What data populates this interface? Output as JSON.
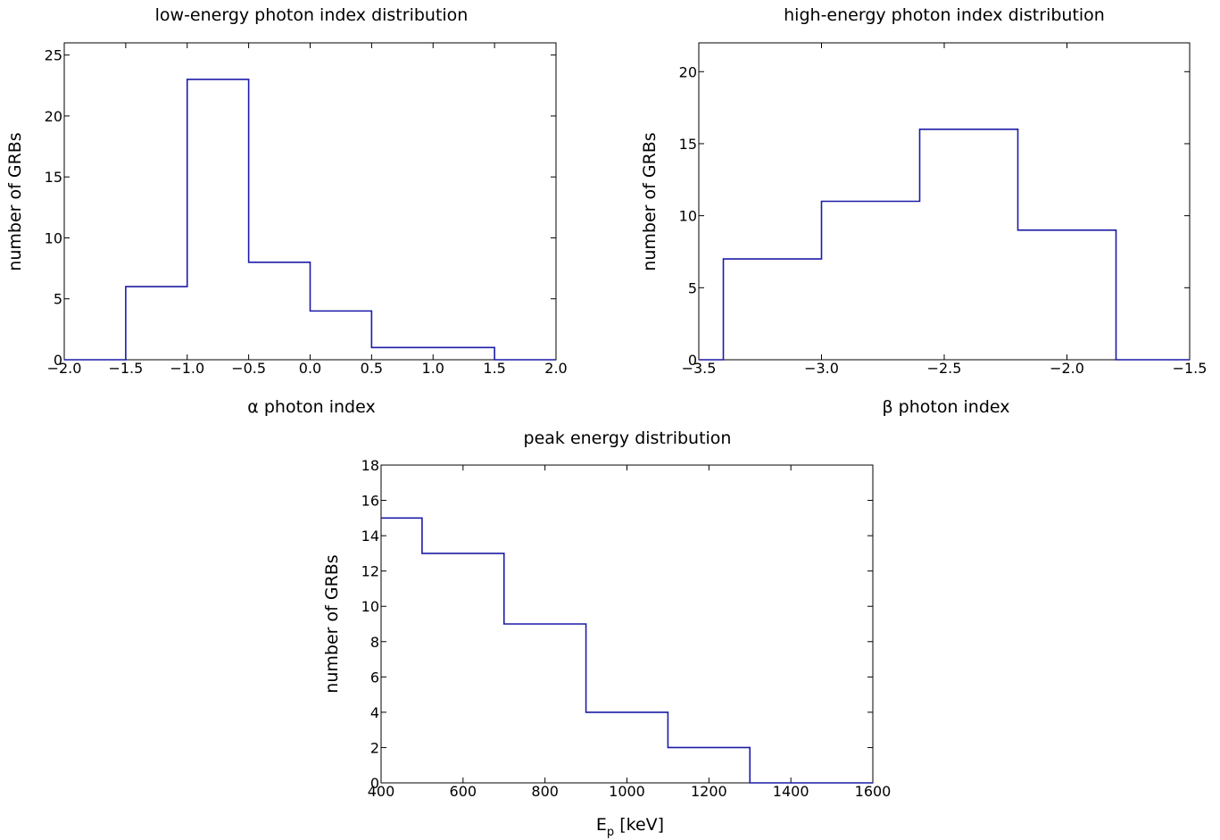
{
  "chart_data": [
    {
      "type": "histogram",
      "title": "low-energy photon index distribution",
      "xlabel": "α photon index",
      "ylabel": "number of GRBs",
      "xlim": [
        -2.0,
        2.0
      ],
      "ylim": [
        0,
        26
      ],
      "xticks": [
        -2.0,
        -1.5,
        -1.0,
        -0.5,
        0.0,
        0.5,
        1.0,
        1.5,
        2.0
      ],
      "xtick_labels": [
        "−2.0",
        "−1.5",
        "−1.0",
        "−0.5",
        "0.0",
        "0.5",
        "1.0",
        "1.5",
        "2.0"
      ],
      "yticks": [
        0,
        5,
        10,
        15,
        20,
        25
      ],
      "ytick_labels": [
        "0",
        "5",
        "10",
        "15",
        "20",
        "25"
      ],
      "bin_edges": [
        -2.0,
        -1.5,
        -1.0,
        -0.5,
        0.0,
        0.5,
        1.0,
        1.5,
        2.0
      ],
      "counts": [
        0,
        6,
        23,
        8,
        4,
        1,
        1,
        0
      ],
      "grid": false,
      "color": "#1c1ca8"
    },
    {
      "type": "histogram",
      "title": "high-energy photon index distribution",
      "xlabel": "β photon index",
      "ylabel": "number of GRBs",
      "xlim": [
        -3.5,
        -1.5
      ],
      "ylim": [
        0,
        22
      ],
      "xticks": [
        -3.5,
        -3.0,
        -2.5,
        -2.0,
        -1.5
      ],
      "xtick_labels": [
        "−3.5",
        "−3.0",
        "−2.5",
        "−2.0",
        "−1.5"
      ],
      "yticks": [
        0,
        5,
        10,
        15,
        20
      ],
      "ytick_labels": [
        "0",
        "5",
        "10",
        "15",
        "20"
      ],
      "bin_edges": [
        -3.5,
        -3.4,
        -3.0,
        -2.6,
        -2.2,
        -1.8,
        -1.5
      ],
      "counts": [
        0,
        7,
        11,
        16,
        9,
        0
      ],
      "grid": false,
      "color": "#1c1ca8"
    },
    {
      "type": "histogram",
      "title": "peak energy distribution",
      "xlabel": "E",
      "xlabel_sub": "p",
      "xlabel_unit": " [keV]",
      "ylabel": "number of GRBs",
      "xlim": [
        400,
        1600
      ],
      "ylim": [
        0,
        18
      ],
      "xticks": [
        400,
        600,
        800,
        1000,
        1200,
        1400,
        1600
      ],
      "xtick_labels": [
        "400",
        "600",
        "800",
        "1000",
        "1200",
        "1400",
        "1600"
      ],
      "yticks": [
        0,
        2,
        4,
        6,
        8,
        10,
        12,
        14,
        16,
        18
      ],
      "ytick_labels": [
        "0",
        "2",
        "4",
        "6",
        "8",
        "10",
        "12",
        "14",
        "16",
        "18"
      ],
      "bin_edges": [
        400,
        500,
        700,
        900,
        1100,
        1300,
        1600
      ],
      "counts": [
        15,
        13,
        9,
        4,
        2,
        0
      ],
      "grid": false,
      "color": "#1c1ca8"
    }
  ]
}
